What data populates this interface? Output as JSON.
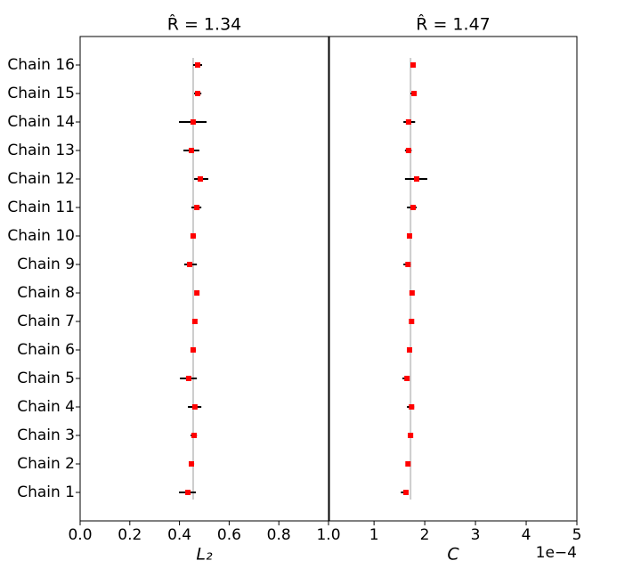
{
  "chart_data": [
    {
      "type": "forest",
      "title": "R̂ = 1.34",
      "x_label": "L₂",
      "categories": [
        "Chain 1",
        "Chain 2",
        "Chain 3",
        "Chain 4",
        "Chain 5",
        "Chain 6",
        "Chain 7",
        "Chain 8",
        "Chain 9",
        "Chain 10",
        "Chain 11",
        "Chain 12",
        "Chain 13",
        "Chain 14",
        "Chain 15",
        "Chain 16"
      ],
      "values": [
        0.434,
        0.448,
        0.459,
        0.462,
        0.437,
        0.455,
        0.462,
        0.47,
        0.441,
        0.455,
        0.47,
        0.484,
        0.448,
        0.455,
        0.473,
        0.473
      ],
      "low": [
        0.398,
        0.438,
        0.445,
        0.434,
        0.402,
        0.445,
        0.459,
        0.466,
        0.419,
        0.445,
        0.448,
        0.459,
        0.416,
        0.398,
        0.459,
        0.455
      ],
      "high": [
        0.466,
        0.459,
        0.47,
        0.488,
        0.47,
        0.466,
        0.47,
        0.473,
        0.47,
        0.466,
        0.488,
        0.516,
        0.48,
        0.509,
        0.488,
        0.491
      ],
      "reference": 0.455,
      "color": "#ff0000",
      "interval_color": "#000000",
      "reference_color": "#cccccc",
      "xlim": [
        0,
        1
      ],
      "xticks": [
        {
          "value": 0,
          "label": "0.0"
        },
        {
          "value": 0.2,
          "label": "0.2"
        },
        {
          "value": 0.4,
          "label": "0.4"
        },
        {
          "value": 0.6,
          "label": "0.6"
        },
        {
          "value": 0.8,
          "label": "0.8"
        },
        {
          "value": 1,
          "label": "1.0"
        }
      ],
      "ylim": [
        -1,
        16
      ]
    },
    {
      "type": "forest",
      "title": "R̂ = 1.47",
      "x_label": "C",
      "x_offset_label": "1e−4",
      "values": [
        1.63,
        1.67,
        1.72,
        1.74,
        1.65,
        1.7,
        1.74,
        1.75,
        1.67,
        1.7,
        1.77,
        1.84,
        1.68,
        1.68,
        1.79,
        1.77
      ],
      "low": [
        1.53,
        1.63,
        1.67,
        1.65,
        1.56,
        1.65,
        1.72,
        1.74,
        1.58,
        1.67,
        1.65,
        1.61,
        1.61,
        1.58,
        1.72,
        1.72
      ],
      "high": [
        1.68,
        1.7,
        1.75,
        1.79,
        1.7,
        1.75,
        1.75,
        1.77,
        1.72,
        1.74,
        1.84,
        2.05,
        1.74,
        1.81,
        1.84,
        1.82
      ],
      "reference": 1.72,
      "color": "#ff0000",
      "interval_color": "#000000",
      "reference_color": "#cccccc",
      "xlim": [
        0.12,
        5
      ],
      "xticks": [
        1,
        2,
        3,
        4,
        5
      ],
      "ylim": [
        -1,
        16
      ]
    }
  ]
}
